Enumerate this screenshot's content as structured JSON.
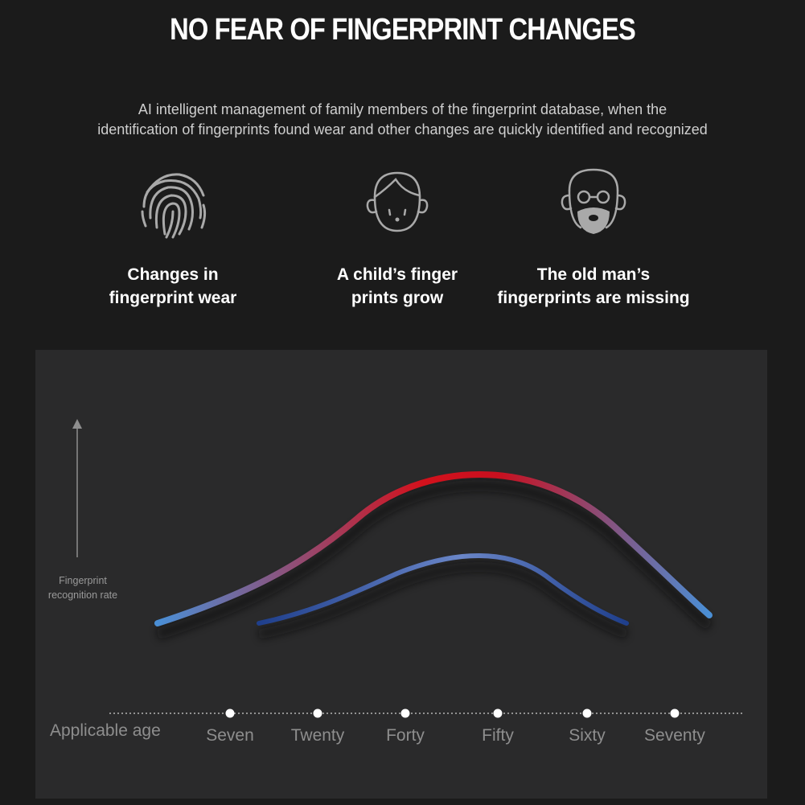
{
  "header": {
    "title": "NO FEAR OF FINGERPRINT CHANGES",
    "subtitle_line1": "AI intelligent management of family members of the fingerprint database, when the",
    "subtitle_line2": "identification of fingerprints found wear and other changes are quickly identified and recognized"
  },
  "features": [
    {
      "icon": "fingerprint-icon",
      "line1": "Changes in",
      "line2": "fingerprint wear"
    },
    {
      "icon": "child-face-icon",
      "line1": "A child’s finger",
      "line2": "prints grow"
    },
    {
      "icon": "old-man-face-icon",
      "line1": "The old man’s",
      "line2": "fingerprints are missing"
    }
  ],
  "colors": {
    "background": "#1b1b1b",
    "panel": "#2a2a2b",
    "red": "#d3111c",
    "blue": "#4a8fd6",
    "dark_blue": "#1f3f8c"
  },
  "chart_data": {
    "type": "line",
    "ylabel_line1": "Fingerprint",
    "ylabel_line2": "recognition rate",
    "xlabel": "Applicable age",
    "categories": [
      "Seven",
      "Twenty",
      "Forty",
      "Fifty",
      "Sixty",
      "Seventy"
    ],
    "grid": false,
    "legend": "none"
  }
}
